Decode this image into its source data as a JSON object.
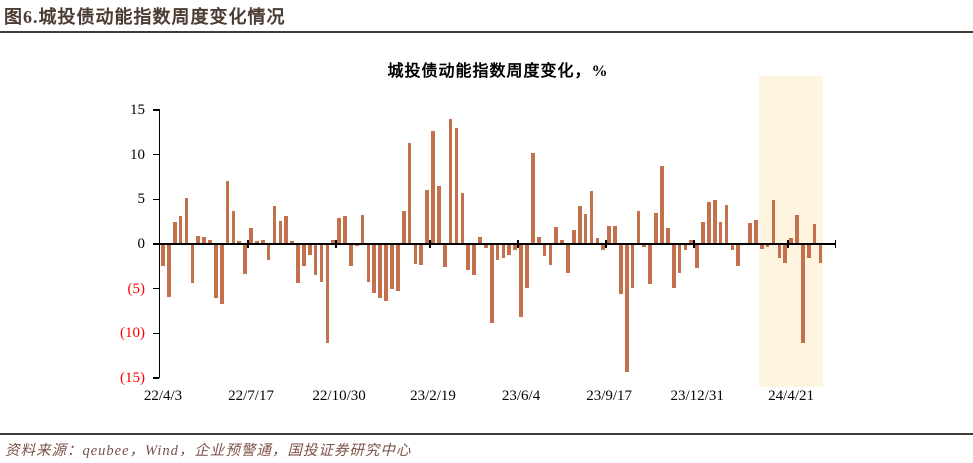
{
  "header": {
    "title": "图6.城投债动能指数周度变化情况"
  },
  "footer": {
    "source": "资料来源：qeubee，Wind，企业预警通，国投证券研究中心"
  },
  "chart_data": {
    "type": "bar",
    "title": "城投债动能指数周度变化，%",
    "xlabel": "",
    "ylabel": "",
    "ylim": [
      -15,
      15
    ],
    "grid": false,
    "legend": false,
    "bar_color": "#C3714D",
    "axis_color": "#000000",
    "highlight_color": "#FDF5DF",
    "yticks": [
      {
        "value": 15,
        "label": "15",
        "color": "#000000"
      },
      {
        "value": 10,
        "label": "10",
        "color": "#000000"
      },
      {
        "value": 5,
        "label": "5",
        "color": "#000000"
      },
      {
        "value": 0,
        "label": "0",
        "color": "#000000"
      },
      {
        "value": -5,
        "label": "(5)",
        "color": "#FF0000"
      },
      {
        "value": -10,
        "label": "(10)",
        "color": "#FF0000"
      },
      {
        "value": -15,
        "label": "(15)",
        "color": "#FF0000"
      }
    ],
    "x_tick_labels": [
      {
        "index": 0,
        "label": "22/4/3"
      },
      {
        "index": 15,
        "label": "22/7/17"
      },
      {
        "index": 30,
        "label": "22/10/30"
      },
      {
        "index": 46,
        "label": "23/2/19"
      },
      {
        "index": 61,
        "label": "23/6/4"
      },
      {
        "index": 76,
        "label": "23/9/17"
      },
      {
        "index": 91,
        "label": "23/12/31"
      },
      {
        "index": 107,
        "label": "24/4/21"
      }
    ],
    "highlight": {
      "from": "24/3/17",
      "to": "24/5/26"
    },
    "x": [
      "22/4/3",
      "22/4/10",
      "22/4/17",
      "22/4/24",
      "22/5/1",
      "22/5/8",
      "22/5/15",
      "22/5/22",
      "22/5/29",
      "22/6/5",
      "22/6/12",
      "22/6/19",
      "22/6/26",
      "22/7/3",
      "22/7/10",
      "22/7/17",
      "22/7/24",
      "22/7/31",
      "22/8/7",
      "22/8/14",
      "22/8/21",
      "22/8/28",
      "22/9/4",
      "22/9/11",
      "22/9/18",
      "22/9/25",
      "22/10/2",
      "22/10/9",
      "22/10/16",
      "22/10/23",
      "22/10/30",
      "22/11/6",
      "22/11/13",
      "22/11/20",
      "22/11/27",
      "22/12/4",
      "22/12/11",
      "22/12/18",
      "22/12/25",
      "23/1/1",
      "23/1/8",
      "23/1/15",
      "23/1/22",
      "23/1/29",
      "23/2/5",
      "23/2/12",
      "23/2/19",
      "23/2/26",
      "23/3/5",
      "23/3/12",
      "23/3/19",
      "23/3/26",
      "23/4/2",
      "23/4/9",
      "23/4/16",
      "23/4/23",
      "23/4/30",
      "23/5/7",
      "23/5/14",
      "23/5/21",
      "23/5/28",
      "23/6/4",
      "23/6/11",
      "23/6/18",
      "23/6/25",
      "23/7/2",
      "23/7/9",
      "23/7/16",
      "23/7/23",
      "23/7/30",
      "23/8/6",
      "23/8/13",
      "23/8/20",
      "23/8/27",
      "23/9/3",
      "23/9/10",
      "23/9/17",
      "23/9/24",
      "23/10/1",
      "23/10/8",
      "23/10/15",
      "23/10/22",
      "23/10/29",
      "23/11/5",
      "23/11/12",
      "23/11/19",
      "23/11/26",
      "23/12/3",
      "23/12/10",
      "23/12/17",
      "23/12/24",
      "23/12/31",
      "24/1/7",
      "24/1/14",
      "24/1/21",
      "24/1/28",
      "24/2/4",
      "24/2/11",
      "24/2/18",
      "24/2/25",
      "24/3/3",
      "24/3/10",
      "24/3/17",
      "24/3/24",
      "24/3/31",
      "24/4/7",
      "24/4/14",
      "24/4/21",
      "24/4/28",
      "24/5/5",
      "24/5/12",
      "24/5/19",
      "24/5/26"
    ],
    "values": [
      -2.5,
      -5.9,
      2.5,
      3.1,
      5.2,
      -4.4,
      0.9,
      0.8,
      0.5,
      -6.0,
      -6.7,
      7.0,
      3.7,
      0.3,
      -3.4,
      1.8,
      0.3,
      0.5,
      -1.8,
      4.2,
      2.6,
      3.1,
      0.3,
      -4.4,
      -2.5,
      -1.2,
      -3.5,
      -4.2,
      -11.1,
      0.4,
      2.9,
      3.1,
      -2.5,
      -0.2,
      3.3,
      -4.3,
      -5.5,
      -6.0,
      -6.4,
      -5.0,
      -5.3,
      3.7,
      11.3,
      -2.2,
      -2.4,
      6.0,
      12.6,
      6.5,
      -2.6,
      14.0,
      13.0,
      5.7,
      -2.9,
      -3.5,
      0.8,
      -0.4,
      -8.8,
      -1.8,
      -1.6,
      -1.2,
      -0.7,
      -8.2,
      -4.9,
      10.2,
      0.8,
      -1.3,
      -2.4,
      1.9,
      0.5,
      -3.2,
      1.6,
      4.3,
      3.4,
      5.9,
      0.7,
      -0.7,
      2.0,
      2.0,
      -5.6,
      -14.3,
      -4.9,
      3.7,
      -0.3,
      -4.5,
      3.5,
      8.7,
      1.8,
      -4.9,
      -3.2,
      -0.7,
      0.5,
      -2.7,
      2.5,
      4.7,
      4.9,
      2.5,
      4.4,
      -0.7,
      -2.5,
      0.1,
      2.3,
      2.7,
      -0.6,
      -0.3,
      4.9,
      -1.6,
      -2.1,
      0.7,
      3.2,
      -11.1,
      -1.6,
      2.2,
      -2.1
    ]
  }
}
